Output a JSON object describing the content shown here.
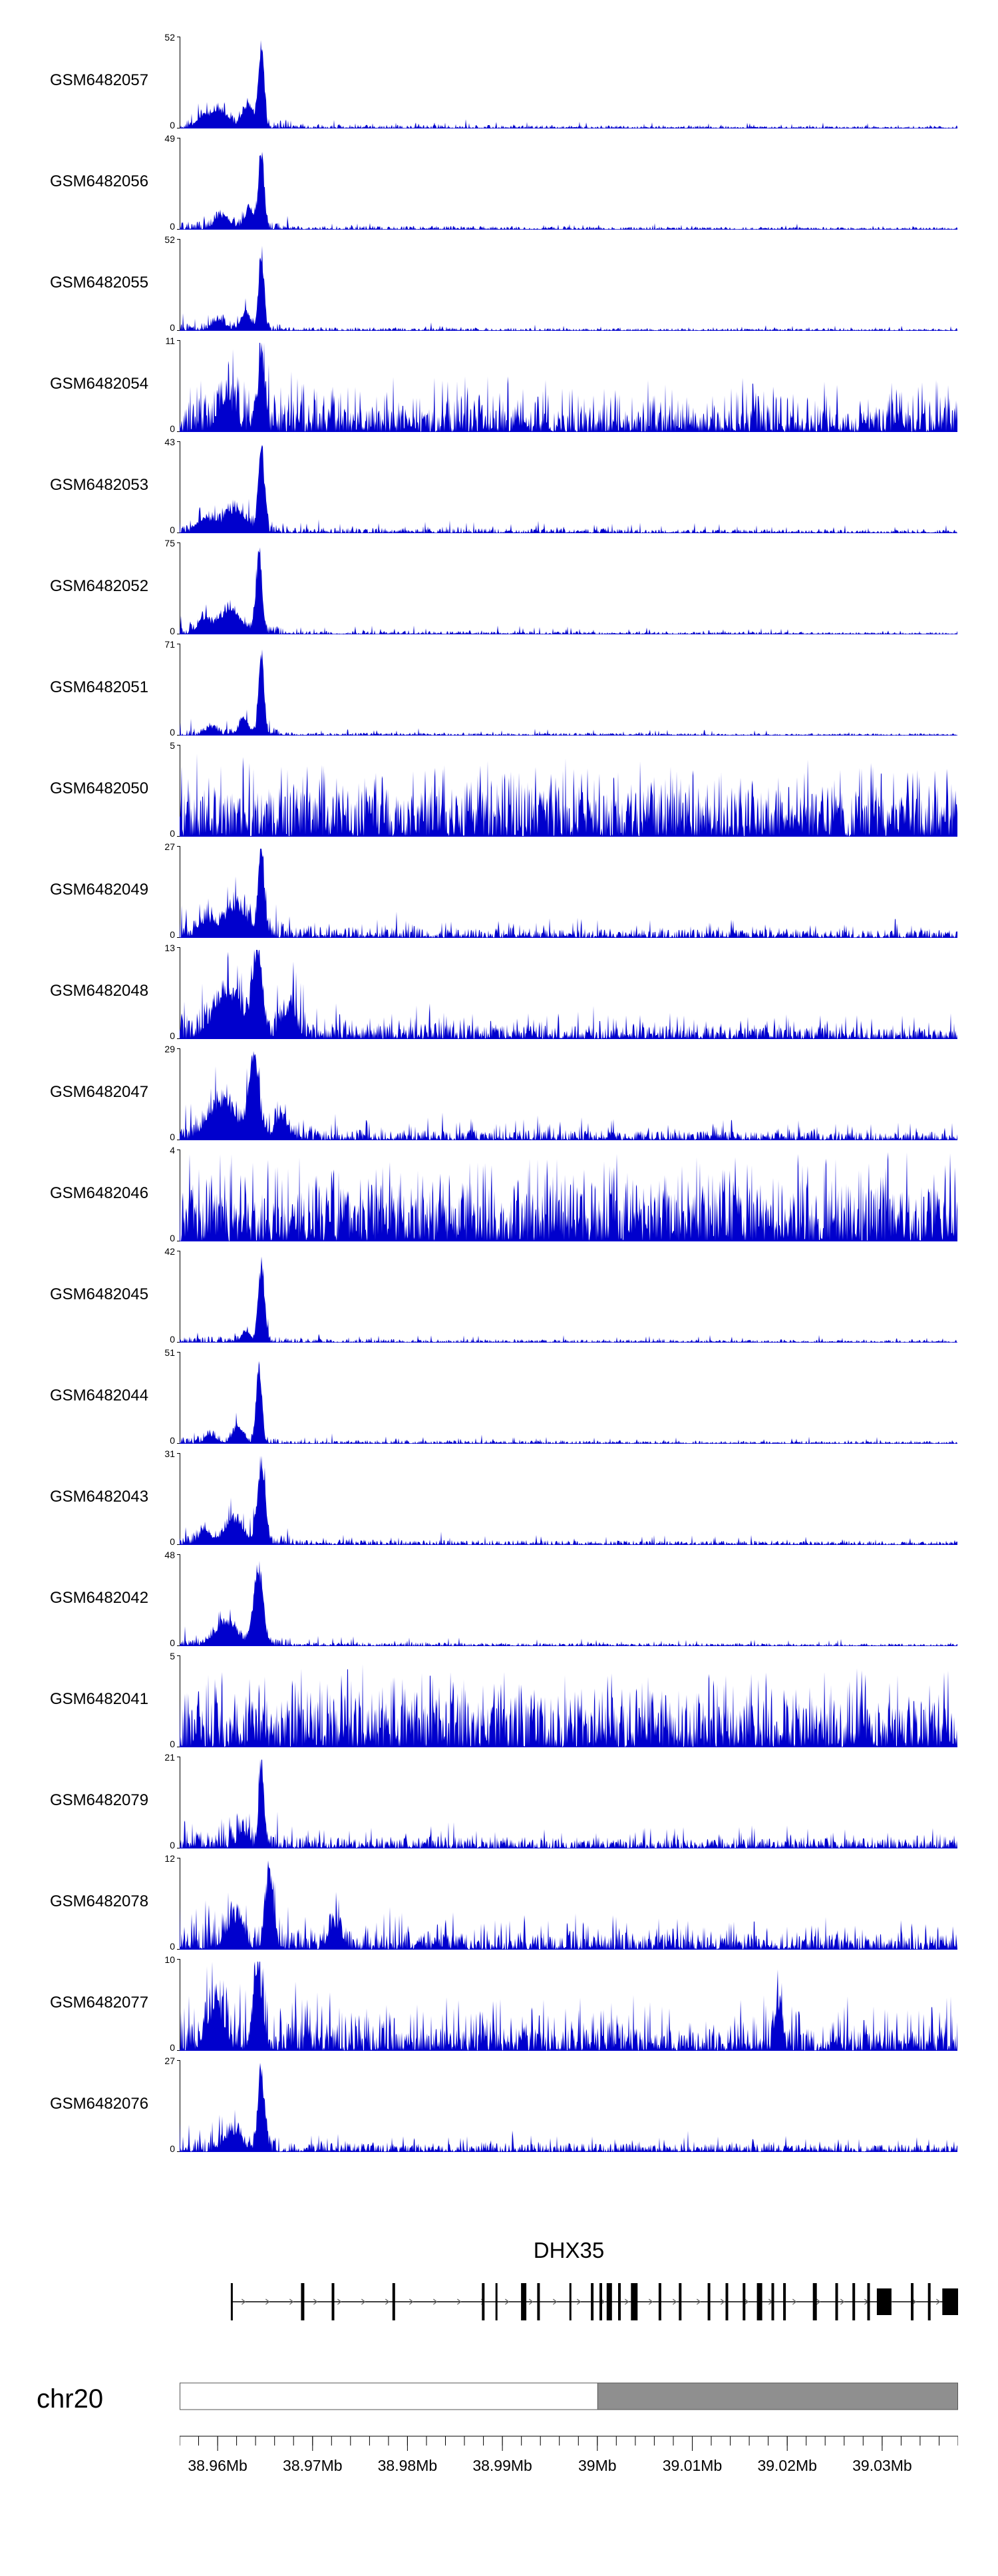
{
  "chart_data": {
    "type": "area",
    "title": "",
    "description": "Genome browser coverage tracks over chr20 around gene DHX35",
    "signal_color": "#0000cd",
    "y_min_label": "0",
    "region": {
      "chrom": "chr20",
      "start_mb": 38.956,
      "end_mb": 39.038,
      "unit": "Mb"
    },
    "x_tick_labels": [
      "38.96Mb",
      "38.97Mb",
      "38.98Mb",
      "38.99Mb",
      "39Mb",
      "39.01Mb",
      "39.02Mb",
      "39.03Mb"
    ],
    "x_tick_positions_mb": [
      38.96,
      38.97,
      38.98,
      38.99,
      39.0,
      39.01,
      39.02,
      39.03
    ],
    "minor_tick_step_mb": 0.002,
    "tracks": [
      {
        "name": "GSM6482057",
        "ymax": 52,
        "profile": {
          "peaks": [
            [
              0.105,
              0.0035,
              1
            ],
            [
              0.088,
              0.007,
              0.3
            ],
            [
              0.05,
              0.012,
              0.2
            ],
            [
              0.028,
              0.007,
              0.12
            ]
          ],
          "noise": 0.05,
          "spike": 0.06,
          "spikeAmp": 0.08,
          "boostUntil": 0.14,
          "boost": 2.2,
          "tail": 0.45
        }
      },
      {
        "name": "GSM6482056",
        "ymax": 49,
        "profile": {
          "peaks": [
            [
              0.105,
              0.0035,
              1
            ],
            [
              0.09,
              0.006,
              0.26
            ],
            [
              0.055,
              0.01,
              0.16
            ]
          ],
          "noise": 0.05,
          "spike": 0.05,
          "spikeAmp": 0.08,
          "boostUntil": 0.14,
          "boost": 2.0,
          "tail": 0.4
        }
      },
      {
        "name": "GSM6482055",
        "ymax": 52,
        "profile": {
          "peaks": [
            [
              0.105,
              0.0035,
              1
            ],
            [
              0.085,
              0.006,
              0.22
            ],
            [
              0.05,
              0.009,
              0.13
            ]
          ],
          "noise": 0.045,
          "spike": 0.05,
          "spikeAmp": 0.07,
          "boostUntil": 0.13,
          "boost": 2.0,
          "tail": 0.4
        }
      },
      {
        "name": "GSM6482054",
        "ymax": 11,
        "profile": {
          "peaks": [
            [
              0.105,
              0.004,
              0.92
            ],
            [
              0.06,
              0.01,
              0.4
            ]
          ],
          "noise": 0.28,
          "spike": 0.3,
          "spikeAmp": 0.45,
          "boostUntil": 0.2,
          "boost": 1.2,
          "tail": 0.12
        }
      },
      {
        "name": "GSM6482053",
        "ymax": 43,
        "profile": {
          "peaks": [
            [
              0.105,
              0.004,
              1
            ],
            [
              0.07,
              0.014,
              0.28
            ],
            [
              0.032,
              0.009,
              0.18
            ]
          ],
          "noise": 0.07,
          "spike": 0.08,
          "spikeAmp": 0.12,
          "boostUntil": 0.14,
          "boost": 2.0,
          "tail": 0.45
        }
      },
      {
        "name": "GSM6482052",
        "ymax": 75,
        "profile": {
          "peaks": [
            [
              0.102,
              0.004,
              1
            ],
            [
              0.065,
              0.014,
              0.3
            ],
            [
              0.03,
              0.008,
              0.16
            ]
          ],
          "noise": 0.045,
          "spike": 0.06,
          "spikeAmp": 0.09,
          "boostUntil": 0.13,
          "boost": 2.2,
          "tail": 0.4
        }
      },
      {
        "name": "GSM6482051",
        "ymax": 71,
        "profile": {
          "peaks": [
            [
              0.105,
              0.0035,
              1
            ],
            [
              0.082,
              0.006,
              0.2
            ],
            [
              0.04,
              0.008,
              0.1
            ]
          ],
          "noise": 0.04,
          "spike": 0.05,
          "spikeAmp": 0.08,
          "boostUntil": 0.13,
          "boost": 2.0,
          "tail": 0.35
        }
      },
      {
        "name": "GSM6482050",
        "ymax": 5,
        "profile": {
          "peaks": [],
          "noise": 0.45,
          "spike": 0.5,
          "spikeAmp": 0.5,
          "boostUntil": 0,
          "boost": 1,
          "tail": 0
        }
      },
      {
        "name": "GSM6482049",
        "ymax": 27,
        "profile": {
          "peaks": [
            [
              0.105,
              0.004,
              1
            ],
            [
              0.072,
              0.014,
              0.35
            ],
            [
              0.035,
              0.01,
              0.2
            ]
          ],
          "noise": 0.13,
          "spike": 0.12,
          "spikeAmp": 0.2,
          "boostUntil": 0.14,
          "boost": 1.7,
          "tail": 0.3
        }
      },
      {
        "name": "GSM6482048",
        "ymax": 13,
        "profile": {
          "peaks": [
            [
              0.1,
              0.006,
              1
            ],
            [
              0.062,
              0.018,
              0.55
            ],
            [
              0.14,
              0.009,
              0.35
            ]
          ],
          "noise": 0.2,
          "spike": 0.16,
          "spikeAmp": 0.28,
          "boostUntil": 0.16,
          "boost": 1.5,
          "tail": 0.3
        }
      },
      {
        "name": "GSM6482047",
        "ymax": 29,
        "profile": {
          "peaks": [
            [
              0.096,
              0.006,
              1
            ],
            [
              0.055,
              0.018,
              0.45
            ],
            [
              0.13,
              0.008,
              0.28
            ]
          ],
          "noise": 0.14,
          "spike": 0.12,
          "spikeAmp": 0.24,
          "boostUntil": 0.15,
          "boost": 1.7,
          "tail": 0.3
        }
      },
      {
        "name": "GSM6482046",
        "ymax": 4,
        "profile": {
          "peaks": [],
          "noise": 0.5,
          "spike": 0.55,
          "spikeAmp": 0.55,
          "boostUntil": 0,
          "boost": 1,
          "tail": 0
        }
      },
      {
        "name": "GSM6482045",
        "ymax": 42,
        "profile": {
          "peaks": [
            [
              0.105,
              0.004,
              1
            ],
            [
              0.085,
              0.005,
              0.15
            ]
          ],
          "noise": 0.05,
          "spike": 0.05,
          "spikeAmp": 0.1,
          "boostUntil": 0.13,
          "boost": 1.5,
          "tail": 0.35
        }
      },
      {
        "name": "GSM6482044",
        "ymax": 51,
        "profile": {
          "peaks": [
            [
              0.102,
              0.0035,
              1
            ],
            [
              0.075,
              0.007,
              0.2
            ],
            [
              0.04,
              0.007,
              0.1
            ]
          ],
          "noise": 0.05,
          "spike": 0.05,
          "spikeAmp": 0.09,
          "boostUntil": 0.13,
          "boost": 1.8,
          "tail": 0.4
        }
      },
      {
        "name": "GSM6482043",
        "ymax": 31,
        "profile": {
          "peaks": [
            [
              0.105,
              0.005,
              1
            ],
            [
              0.07,
              0.012,
              0.3
            ],
            [
              0.032,
              0.008,
              0.16
            ]
          ],
          "noise": 0.07,
          "spike": 0.07,
          "spikeAmp": 0.12,
          "boostUntil": 0.14,
          "boost": 1.8,
          "tail": 0.4
        }
      },
      {
        "name": "GSM6482042",
        "ymax": 48,
        "profile": {
          "peaks": [
            [
              0.101,
              0.006,
              1
            ],
            [
              0.06,
              0.014,
              0.3
            ]
          ],
          "noise": 0.05,
          "spike": 0.06,
          "spikeAmp": 0.1,
          "boostUntil": 0.14,
          "boost": 1.8,
          "tail": 0.4
        }
      },
      {
        "name": "GSM6482041",
        "ymax": 5,
        "profile": {
          "peaks": [],
          "noise": 0.45,
          "spike": 0.5,
          "spikeAmp": 0.52,
          "boostUntil": 0,
          "boost": 1,
          "tail": 0
        }
      },
      {
        "name": "GSM6482079",
        "ymax": 21,
        "profile": {
          "peaks": [
            [
              0.105,
              0.0035,
              1
            ],
            [
              0.08,
              0.006,
              0.2
            ]
          ],
          "noise": 0.15,
          "spike": 0.13,
          "spikeAmp": 0.22,
          "boostUntil": 0.14,
          "boost": 1.4,
          "tail": 0.25
        }
      },
      {
        "name": "GSM6482078",
        "ymax": 12,
        "profile": {
          "peaks": [
            [
              0.115,
              0.005,
              0.95
            ],
            [
              0.2,
              0.008,
              0.3
            ],
            [
              0.07,
              0.01,
              0.35
            ]
          ],
          "noise": 0.22,
          "spike": 0.2,
          "spikeAmp": 0.32,
          "boostUntil": 0.2,
          "boost": 1.2,
          "tail": 0.18
        }
      },
      {
        "name": "GSM6482077",
        "ymax": 10,
        "profile": {
          "peaks": [
            [
              0.1,
              0.006,
              0.92
            ],
            [
              0.045,
              0.01,
              0.5
            ],
            [
              0.77,
              0.004,
              0.55
            ]
          ],
          "noise": 0.28,
          "spike": 0.28,
          "spikeAmp": 0.45,
          "boostUntil": 0.18,
          "boost": 1.3,
          "tail": 0.12
        }
      },
      {
        "name": "GSM6482076",
        "ymax": 27,
        "profile": {
          "peaks": [
            [
              0.105,
              0.004,
              1
            ],
            [
              0.07,
              0.01,
              0.25
            ]
          ],
          "noise": 0.12,
          "spike": 0.1,
          "spikeAmp": 0.2,
          "boostUntil": 0.14,
          "boost": 1.5,
          "tail": 0.3
        }
      }
    ],
    "gene": {
      "name": "DHX35",
      "strand": "right",
      "start_frac": 0.067,
      "end_frac": 1.0,
      "exons": [
        {
          "f": 0.067,
          "w": 3,
          "h": 56
        },
        {
          "f": 0.158,
          "w": 5,
          "h": 56
        },
        {
          "f": 0.197,
          "w": 4,
          "h": 56
        },
        {
          "f": 0.275,
          "w": 4,
          "h": 56
        },
        {
          "f": 0.39,
          "w": 4,
          "h": 56
        },
        {
          "f": 0.407,
          "w": 3,
          "h": 56
        },
        {
          "f": 0.442,
          "w": 8,
          "h": 56
        },
        {
          "f": 0.461,
          "w": 4,
          "h": 56
        },
        {
          "f": 0.502,
          "w": 3,
          "h": 56
        },
        {
          "f": 0.53,
          "w": 4,
          "h": 56
        },
        {
          "f": 0.541,
          "w": 4,
          "h": 56
        },
        {
          "f": 0.552,
          "w": 8,
          "h": 56
        },
        {
          "f": 0.565,
          "w": 4,
          "h": 56
        },
        {
          "f": 0.584,
          "w": 10,
          "h": 56
        },
        {
          "f": 0.617,
          "w": 4,
          "h": 56
        },
        {
          "f": 0.643,
          "w": 4,
          "h": 56
        },
        {
          "f": 0.68,
          "w": 4,
          "h": 56
        },
        {
          "f": 0.703,
          "w": 4,
          "h": 56
        },
        {
          "f": 0.725,
          "w": 4,
          "h": 56
        },
        {
          "f": 0.745,
          "w": 8,
          "h": 56
        },
        {
          "f": 0.762,
          "w": 4,
          "h": 56
        },
        {
          "f": 0.777,
          "w": 4,
          "h": 56
        },
        {
          "f": 0.816,
          "w": 6,
          "h": 56
        },
        {
          "f": 0.844,
          "w": 4,
          "h": 56
        },
        {
          "f": 0.866,
          "w": 4,
          "h": 56
        },
        {
          "f": 0.885,
          "w": 4,
          "h": 56
        },
        {
          "f": 0.905,
          "w": 22,
          "h": 40
        },
        {
          "f": 0.941,
          "w": 4,
          "h": 56
        },
        {
          "f": 0.963,
          "w": 4,
          "h": 56
        },
        {
          "f": 0.99,
          "w": 24,
          "h": 40
        }
      ]
    },
    "ideogram": {
      "fill_start_frac": 0.537,
      "fill_color": "#8f8f8f",
      "border_color": "#555555"
    }
  }
}
